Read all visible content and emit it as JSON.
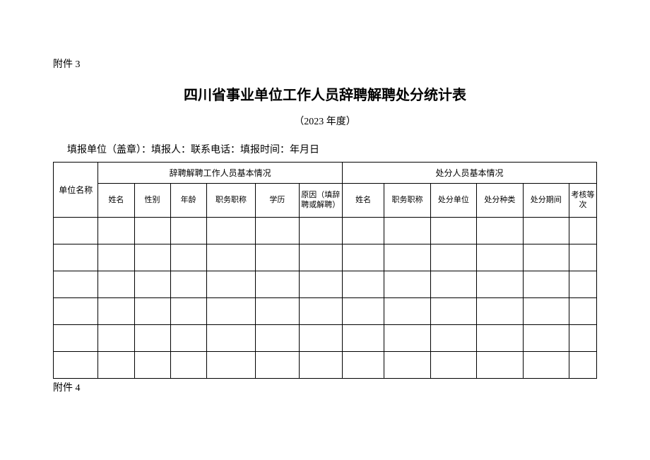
{
  "attachment_top": "附件 3",
  "title": "四川省事业单位工作人员辞聘解聘处分统计表",
  "year": "（2023 年度）",
  "form_info": "填报单位（盖章）：填报人：联系电话：填报时间：年月日",
  "table": {
    "col_unit": "单位名称",
    "group1": "辞聘解聘工作人员基本情况",
    "group2": "处分人员基本情况",
    "sub": {
      "name": "姓名",
      "gender": "性别",
      "age": "年龄",
      "job_title": "职务职称",
      "education": "学历",
      "reason": "原因（填辞聘或解聘）",
      "name2": "姓名",
      "job_title2": "职务职称",
      "punish_unit": "处分单位",
      "punish_type": "处分种类",
      "punish_period": "处分期间",
      "assess_level": "考核等次"
    }
  },
  "attachment_bottom": "附件 4"
}
